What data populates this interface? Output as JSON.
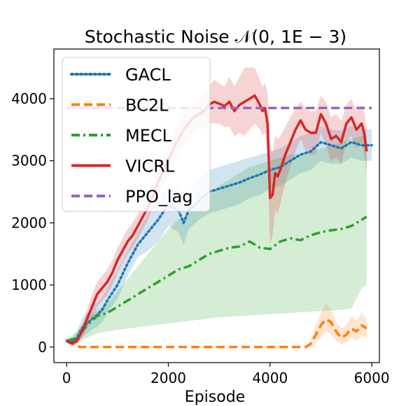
{
  "chart_data": {
    "type": "line",
    "title": "Stochastic Noise 𝒩(0, 1E − 3)",
    "xlabel": "Episode",
    "ylabel": "",
    "xlim": [
      -250,
      6150
    ],
    "ylim": [
      -250,
      4800
    ],
    "xticks": [
      0,
      2000,
      4000,
      6000
    ],
    "yticks": [
      0,
      1000,
      2000,
      3000,
      4000
    ],
    "legend_position": "top-left",
    "series": [
      {
        "name": "GACL",
        "color": "#1f77b4",
        "style": "dotted",
        "x": [
          0,
          100,
          200,
          300,
          400,
          500,
          600,
          700,
          800,
          1000,
          1200,
          1400,
          1600,
          1800,
          2000,
          2200,
          2300,
          2400,
          2600,
          2800,
          3000,
          3200,
          3400,
          3600,
          3800,
          4000,
          4200,
          4400,
          4600,
          4800,
          5000,
          5200,
          5400,
          5600,
          5800,
          6000
        ],
        "y": [
          100,
          80,
          150,
          300,
          380,
          450,
          520,
          600,
          750,
          1000,
          1350,
          1650,
          1850,
          2050,
          2300,
          2200,
          2000,
          2200,
          2350,
          2500,
          2550,
          2600,
          2650,
          2720,
          2780,
          2850,
          2900,
          3000,
          3100,
          3150,
          3300,
          3250,
          3200,
          3300,
          3250,
          3250
        ],
        "upper": [
          130,
          120,
          250,
          450,
          550,
          650,
          720,
          800,
          950,
          1250,
          1550,
          1850,
          2150,
          2400,
          2600,
          2550,
          2350,
          2500,
          2700,
          2850,
          2900,
          2950,
          3000,
          3050,
          3100,
          3150,
          3200,
          3300,
          3400,
          3450,
          3550,
          3500,
          3480,
          3560,
          3520,
          3500
        ],
        "lower": [
          70,
          40,
          60,
          150,
          220,
          280,
          330,
          400,
          550,
          780,
          1150,
          1450,
          1550,
          1700,
          1950,
          1850,
          1650,
          1900,
          2050,
          2150,
          2200,
          2250,
          2300,
          2400,
          2450,
          2550,
          2600,
          2700,
          2800,
          2850,
          3000,
          2950,
          2950,
          3050,
          3000,
          3000
        ]
      },
      {
        "name": "BC2L",
        "color": "#ff7f0e",
        "style": "dashed",
        "x": [
          0,
          100,
          200,
          300,
          1000,
          2000,
          3000,
          4000,
          4700,
          4800,
          4900,
          5000,
          5100,
          5200,
          5300,
          5400,
          5500,
          5600,
          5700,
          5800,
          5900
        ],
        "y": [
          100,
          60,
          10,
          0,
          0,
          0,
          0,
          0,
          0,
          50,
          200,
          350,
          450,
          400,
          250,
          150,
          200,
          300,
          250,
          350,
          300
        ],
        "upper": [
          130,
          90,
          30,
          0,
          0,
          0,
          0,
          0,
          0,
          120,
          350,
          550,
          700,
          600,
          400,
          300,
          350,
          500,
          420,
          550,
          450
        ],
        "lower": [
          70,
          30,
          0,
          0,
          0,
          0,
          0,
          0,
          0,
          0,
          50,
          150,
          250,
          200,
          100,
          50,
          80,
          150,
          100,
          180,
          150
        ]
      },
      {
        "name": "MECL",
        "color": "#2ca02c",
        "style": "dashdot",
        "x": [
          0,
          200,
          400,
          600,
          800,
          1000,
          1200,
          1400,
          1600,
          1800,
          2000,
          2200,
          2400,
          2600,
          2800,
          3000,
          3200,
          3400,
          3600,
          3800,
          4000,
          4200,
          4400,
          4600,
          4800,
          5000,
          5200,
          5400,
          5600,
          5800,
          5900
        ],
        "y": [
          100,
          150,
          350,
          500,
          550,
          650,
          750,
          850,
          950,
          1050,
          1150,
          1250,
          1300,
          1400,
          1500,
          1550,
          1600,
          1620,
          1700,
          1600,
          1580,
          1700,
          1750,
          1720,
          1800,
          1850,
          1880,
          1900,
          1950,
          2050,
          2100
        ],
        "upper": [
          130,
          250,
          450,
          600,
          700,
          900,
          1100,
          1300,
          1500,
          1700,
          1900,
          2050,
          2150,
          2300,
          2450,
          2600,
          2700,
          2800,
          2900,
          2950,
          3000,
          3050,
          3100,
          3100,
          3150,
          3200,
          3250,
          3300,
          3350,
          3400,
          3400
        ],
        "lower": [
          70,
          50,
          150,
          220,
          250,
          280,
          300,
          320,
          340,
          360,
          380,
          400,
          420,
          440,
          460,
          480,
          490,
          500,
          510,
          520,
          530,
          540,
          550,
          560,
          570,
          580,
          590,
          600,
          620,
          950,
          1000
        ]
      },
      {
        "name": "VICRL",
        "color": "#d62728",
        "style": "solid",
        "x": [
          0,
          100,
          200,
          300,
          400,
          500,
          600,
          700,
          800,
          900,
          1000,
          1100,
          1200,
          1300,
          1400,
          1500,
          1600,
          1700,
          1800,
          1900,
          2000,
          2100,
          2200,
          2300,
          2400,
          2500,
          2600,
          2700,
          2800,
          2900,
          3000,
          3100,
          3200,
          3300,
          3400,
          3500,
          3600,
          3700,
          3800,
          3850,
          3900,
          3950,
          4000,
          4050,
          4100,
          4150,
          4200,
          4300,
          4400,
          4500,
          4600,
          4700,
          4800,
          4900,
          5000,
          5100,
          5200,
          5300,
          5400,
          5500,
          5600,
          5700,
          5800,
          5850,
          5900
        ],
        "y": [
          100,
          60,
          100,
          250,
          450,
          650,
          850,
          950,
          1050,
          1200,
          1400,
          1550,
          1700,
          1800,
          1950,
          2100,
          2250,
          2450,
          2650,
          2850,
          3000,
          3200,
          3350,
          3500,
          3600,
          3700,
          3750,
          3800,
          3900,
          3950,
          3920,
          3880,
          3950,
          3800,
          3900,
          3950,
          4000,
          4050,
          3900,
          3800,
          3850,
          3600,
          2400,
          2450,
          2800,
          2750,
          2850,
          3100,
          3300,
          3500,
          3650,
          3500,
          3450,
          3450,
          3750,
          3600,
          3350,
          3400,
          3300,
          3600,
          3700,
          3500,
          3600,
          3450,
          3150
        ],
        "upper": [
          130,
          100,
          150,
          350,
          600,
          850,
          1050,
          1150,
          1250,
          1400,
          1600,
          1750,
          1900,
          2000,
          2150,
          2300,
          2450,
          2650,
          2850,
          3050,
          3250,
          3450,
          3600,
          3750,
          3850,
          3950,
          4000,
          4100,
          4200,
          4300,
          4250,
          4200,
          4350,
          4200,
          4350,
          4500,
          4500,
          4500,
          4300,
          4200,
          4250,
          4100,
          3300,
          3100,
          3400,
          3350,
          3400,
          3550,
          3700,
          3850,
          3950,
          3850,
          3800,
          3800,
          4050,
          3950,
          3700,
          3750,
          3650,
          3900,
          4000,
          3800,
          3900,
          3800,
          3500
        ],
        "lower": [
          70,
          20,
          50,
          150,
          300,
          450,
          650,
          750,
          850,
          1000,
          1200,
          1350,
          1500,
          1600,
          1750,
          1900,
          2050,
          2250,
          2450,
          2650,
          2750,
          2950,
          3100,
          3250,
          3350,
          3450,
          3500,
          3500,
          3600,
          3600,
          3600,
          3550,
          3550,
          3400,
          3450,
          3400,
          3500,
          3600,
          3500,
          3400,
          3450,
          3100,
          1650,
          1800,
          2200,
          2150,
          2300,
          2650,
          2900,
          3150,
          3350,
          3150,
          3100,
          3100,
          3450,
          3250,
          3000,
          3050,
          2950,
          3300,
          3400,
          3200,
          3300,
          3100,
          2800
        ]
      },
      {
        "name": "PPO_lag",
        "color": "#9467bd",
        "style": "dashed",
        "x": [
          0,
          6000
        ],
        "y": [
          3850,
          3850
        ]
      }
    ]
  }
}
